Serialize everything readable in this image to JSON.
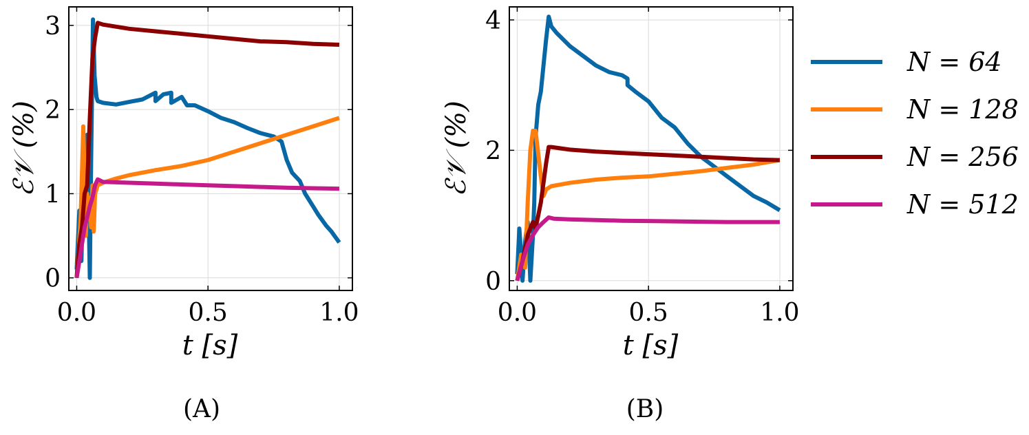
{
  "chart_data": [
    {
      "type": "line",
      "panel_caption": "(A)",
      "xlabel": "t [s]",
      "ylabel": "ℰ𝒱 (%)",
      "xlim": [
        -0.03,
        1.05
      ],
      "ylim": [
        -0.15,
        3.22
      ],
      "xticks": [
        0.0,
        0.5,
        1.0
      ],
      "xtick_labels": [
        "0.0",
        "0.5",
        "1.0"
      ],
      "yticks": [
        0,
        1,
        2,
        3
      ],
      "ytick_labels": [
        "0",
        "1",
        "2",
        "3"
      ],
      "grid": true,
      "series": [
        {
          "name": "N = 64",
          "color": "#0868a6",
          "x": [
            0.0,
            0.01,
            0.018,
            0.025,
            0.03,
            0.04,
            0.045,
            0.05,
            0.055,
            0.062,
            0.068,
            0.075,
            0.08,
            0.1,
            0.15,
            0.2,
            0.25,
            0.3,
            0.3,
            0.33,
            0.36,
            0.36,
            0.4,
            0.42,
            0.45,
            0.5,
            0.55,
            0.6,
            0.65,
            0.7,
            0.75,
            0.78,
            0.8,
            0.82,
            0.85,
            0.87,
            0.9,
            0.92,
            0.95,
            0.97,
            1.0
          ],
          "y": [
            0.1,
            0.8,
            0.2,
            1.1,
            0.6,
            1.7,
            0.9,
            0.0,
            1.4,
            3.07,
            2.4,
            2.15,
            2.1,
            2.08,
            2.06,
            2.09,
            2.12,
            2.2,
            2.1,
            2.18,
            2.2,
            2.08,
            2.15,
            2.05,
            2.05,
            1.98,
            1.9,
            1.85,
            1.78,
            1.72,
            1.68,
            1.62,
            1.4,
            1.25,
            1.15,
            1.0,
            0.85,
            0.75,
            0.62,
            0.55,
            0.42
          ]
        },
        {
          "name": "N = 128",
          "color": "#ff7f0e",
          "x": [
            0.0,
            0.015,
            0.025,
            0.03,
            0.035,
            0.04,
            0.045,
            0.05,
            0.055,
            0.06,
            0.065,
            0.07,
            0.08,
            0.1,
            0.15,
            0.2,
            0.3,
            0.4,
            0.5,
            0.6,
            0.7,
            0.8,
            0.9,
            1.0
          ],
          "y": [
            0.0,
            0.7,
            1.8,
            1.2,
            0.5,
            1.0,
            0.7,
            0.95,
            0.6,
            1.1,
            0.55,
            1.0,
            1.1,
            1.13,
            1.18,
            1.22,
            1.28,
            1.33,
            1.4,
            1.5,
            1.6,
            1.7,
            1.8,
            1.9
          ]
        },
        {
          "name": "N = 256",
          "color": "#8b0000",
          "x": [
            0.0,
            0.01,
            0.02,
            0.03,
            0.04,
            0.05,
            0.06,
            0.07,
            0.08,
            0.1,
            0.2,
            0.3,
            0.4,
            0.5,
            0.6,
            0.7,
            0.8,
            0.9,
            1.0
          ],
          "y": [
            0.0,
            0.4,
            0.6,
            1.0,
            1.1,
            1.9,
            2.6,
            2.85,
            3.03,
            3.01,
            2.96,
            2.93,
            2.9,
            2.87,
            2.84,
            2.81,
            2.8,
            2.78,
            2.77
          ]
        },
        {
          "name": "N = 512",
          "color": "#c51b8a",
          "x": [
            0.0,
            0.01,
            0.02,
            0.03,
            0.04,
            0.05,
            0.06,
            0.07,
            0.08,
            0.1,
            0.2,
            0.3,
            0.4,
            0.5,
            0.6,
            0.7,
            0.8,
            0.9,
            1.0
          ],
          "y": [
            0.0,
            0.2,
            0.4,
            0.6,
            0.72,
            0.85,
            0.95,
            1.1,
            1.17,
            1.14,
            1.13,
            1.12,
            1.11,
            1.1,
            1.09,
            1.08,
            1.07,
            1.065,
            1.06
          ]
        }
      ]
    },
    {
      "type": "line",
      "panel_caption": "(B)",
      "xlabel": "t [s]",
      "ylabel": "ℰ𝒱 (%)",
      "xlim": [
        -0.03,
        1.05
      ],
      "ylim": [
        -0.15,
        4.2
      ],
      "xticks": [
        0.0,
        0.5,
        1.0
      ],
      "xtick_labels": [
        "0.0",
        "0.5",
        "1.0"
      ],
      "yticks": [
        0,
        2,
        4
      ],
      "ytick_labels": [
        "0",
        "2",
        "4"
      ],
      "grid": true,
      "series": [
        {
          "name": "N = 64",
          "color": "#0868a6",
          "x": [
            0.0,
            0.008,
            0.015,
            0.02,
            0.03,
            0.04,
            0.045,
            0.05,
            0.06,
            0.065,
            0.07,
            0.08,
            0.09,
            0.1,
            0.11,
            0.12,
            0.13,
            0.15,
            0.2,
            0.3,
            0.35,
            0.4,
            0.42,
            0.42,
            0.45,
            0.5,
            0.55,
            0.6,
            0.65,
            0.7,
            0.75,
            0.8,
            0.85,
            0.9,
            0.95,
            1.0
          ],
          "y": [
            0.1,
            0.8,
            0.4,
            0.0,
            0.6,
            0.9,
            0.5,
            0.0,
            0.7,
            1.2,
            2.2,
            2.7,
            2.9,
            3.3,
            3.7,
            4.05,
            3.9,
            3.8,
            3.6,
            3.3,
            3.2,
            3.15,
            3.1,
            3.0,
            2.9,
            2.75,
            2.5,
            2.35,
            2.1,
            1.9,
            1.75,
            1.6,
            1.45,
            1.3,
            1.2,
            1.08
          ]
        },
        {
          "name": "N = 128",
          "color": "#ff7f0e",
          "x": [
            0.0,
            0.015,
            0.03,
            0.04,
            0.05,
            0.06,
            0.07,
            0.08,
            0.09,
            0.1,
            0.11,
            0.13,
            0.2,
            0.3,
            0.4,
            0.5,
            0.6,
            0.7,
            0.8,
            0.9,
            1.0
          ],
          "y": [
            0.0,
            0.4,
            0.2,
            1.2,
            2.0,
            2.3,
            2.3,
            1.95,
            1.6,
            1.3,
            1.4,
            1.45,
            1.5,
            1.55,
            1.58,
            1.6,
            1.64,
            1.68,
            1.73,
            1.78,
            1.85
          ]
        },
        {
          "name": "N = 256",
          "color": "#8b0000",
          "x": [
            0.0,
            0.02,
            0.04,
            0.06,
            0.07,
            0.08,
            0.09,
            0.1,
            0.11,
            0.12,
            0.13,
            0.2,
            0.3,
            0.4,
            0.5,
            0.6,
            0.7,
            0.8,
            0.9,
            1.0
          ],
          "y": [
            0.0,
            0.3,
            0.7,
            0.9,
            0.8,
            1.0,
            1.2,
            1.5,
            1.8,
            2.05,
            2.05,
            2.01,
            1.98,
            1.96,
            1.94,
            1.92,
            1.9,
            1.88,
            1.86,
            1.85
          ]
        },
        {
          "name": "N = 512",
          "color": "#c51b8a",
          "x": [
            0.0,
            0.02,
            0.04,
            0.06,
            0.08,
            0.1,
            0.12,
            0.14,
            0.2,
            0.3,
            0.4,
            0.5,
            0.6,
            0.7,
            0.8,
            0.9,
            1.0
          ],
          "y": [
            0.0,
            0.3,
            0.55,
            0.7,
            0.82,
            0.9,
            0.97,
            0.95,
            0.94,
            0.93,
            0.92,
            0.915,
            0.91,
            0.905,
            0.9,
            0.9,
            0.9
          ]
        }
      ]
    }
  ],
  "legend": {
    "placement": "right",
    "entries": [
      {
        "label": "N = 64",
        "color": "#0868a6"
      },
      {
        "label": "N = 128",
        "color": "#ff7f0e"
      },
      {
        "label": "N = 256",
        "color": "#8b0000"
      },
      {
        "label": "N = 512",
        "color": "#c51b8a"
      }
    ]
  }
}
